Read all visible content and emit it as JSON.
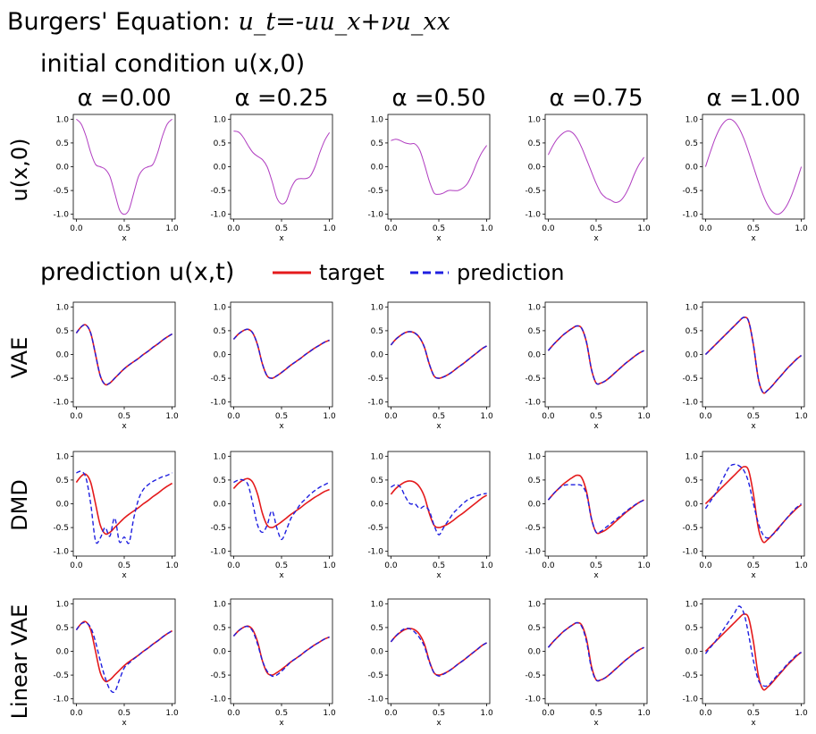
{
  "figure": {
    "title_prefix": "Burgers' Equation: ",
    "title_equation": "u_t=-uu_x+νu_xx",
    "section_initial": "initial condition u(x,0)",
    "section_prediction": "prediction u(x,t)",
    "legend": [
      {
        "label": "target",
        "color": "#e41a1c",
        "style": "solid"
      },
      {
        "label": "prediction",
        "color": "#1f1fe0",
        "style": "dashed"
      }
    ],
    "row_labels": [
      "u(x,0)",
      "VAE",
      "DMD",
      "Linear VAE"
    ],
    "column_titles": [
      "α =0.00",
      "α =0.25",
      "α =0.50",
      "α =0.75",
      "α =1.00"
    ],
    "colors": {
      "initial": "#b03cc0",
      "target": "#e41a1c",
      "prediction": "#1f1fe0"
    }
  },
  "chart_data": {
    "type": "line",
    "xlabel": "x",
    "xlim": [
      0,
      1
    ],
    "ylim": [
      -1.1,
      1.1
    ],
    "xticks": [
      "0.0",
      "0.5",
      "1.0"
    ],
    "yticks": [
      "1.0",
      "0.5",
      "0.0",
      "-0.5",
      "-1.0"
    ],
    "x": [
      0,
      0.05,
      0.1,
      0.15,
      0.2,
      0.25,
      0.3,
      0.35,
      0.4,
      0.45,
      0.5,
      0.55,
      0.6,
      0.65,
      0.7,
      0.75,
      0.8,
      0.85,
      0.9,
      0.95,
      1.0
    ],
    "initial_condition": [
      [
        1.0,
        0.9,
        0.65,
        0.3,
        0.05,
        0.0,
        -0.05,
        -0.2,
        -0.55,
        -0.9,
        -1.0,
        -0.9,
        -0.55,
        -0.2,
        -0.05,
        0.0,
        0.05,
        0.3,
        0.65,
        0.9,
        1.0
      ],
      [
        0.75,
        0.73,
        0.62,
        0.45,
        0.3,
        0.22,
        0.15,
        0.0,
        -0.3,
        -0.65,
        -0.78,
        -0.72,
        -0.45,
        -0.28,
        -0.25,
        -0.25,
        -0.2,
        0.0,
        0.3,
        0.55,
        0.72
      ],
      [
        0.55,
        0.58,
        0.55,
        0.5,
        0.48,
        0.48,
        0.35,
        0.05,
        -0.3,
        -0.55,
        -0.58,
        -0.55,
        -0.5,
        -0.5,
        -0.5,
        -0.45,
        -0.35,
        -0.15,
        0.1,
        0.3,
        0.45
      ],
      [
        0.25,
        0.45,
        0.6,
        0.7,
        0.75,
        0.72,
        0.6,
        0.4,
        0.15,
        -0.1,
        -0.35,
        -0.55,
        -0.65,
        -0.7,
        -0.75,
        -0.72,
        -0.6,
        -0.4,
        -0.15,
        0.05,
        0.2
      ],
      [
        0.0,
        0.31,
        0.59,
        0.81,
        0.95,
        1.0,
        0.95,
        0.81,
        0.59,
        0.31,
        0.0,
        -0.31,
        -0.59,
        -0.81,
        -0.95,
        -1.0,
        -0.95,
        -0.81,
        -0.59,
        -0.31,
        0.0
      ]
    ],
    "rows": [
      {
        "name": "VAE",
        "target": [
          [
            0.45,
            0.58,
            0.62,
            0.45,
            0.0,
            -0.45,
            -0.63,
            -0.6,
            -0.5,
            -0.4,
            -0.3,
            -0.22,
            -0.15,
            -0.08,
            0.0,
            0.07,
            0.15,
            0.22,
            0.3,
            0.37,
            0.43
          ],
          [
            0.32,
            0.43,
            0.5,
            0.53,
            0.45,
            0.2,
            -0.2,
            -0.45,
            -0.5,
            -0.45,
            -0.38,
            -0.3,
            -0.22,
            -0.15,
            -0.08,
            0.0,
            0.07,
            0.14,
            0.2,
            0.26,
            0.3
          ],
          [
            0.2,
            0.32,
            0.4,
            0.46,
            0.48,
            0.45,
            0.35,
            0.15,
            -0.2,
            -0.45,
            -0.5,
            -0.47,
            -0.42,
            -0.35,
            -0.27,
            -0.2,
            -0.12,
            -0.04,
            0.04,
            0.12,
            0.18
          ],
          [
            0.08,
            0.2,
            0.3,
            0.4,
            0.48,
            0.55,
            0.6,
            0.55,
            0.25,
            -0.3,
            -0.6,
            -0.6,
            -0.55,
            -0.47,
            -0.38,
            -0.29,
            -0.2,
            -0.12,
            -0.04,
            0.03,
            0.08
          ],
          [
            0.0,
            0.1,
            0.2,
            0.3,
            0.4,
            0.5,
            0.6,
            0.7,
            0.78,
            0.7,
            0.2,
            -0.5,
            -0.8,
            -0.75,
            -0.65,
            -0.53,
            -0.42,
            -0.3,
            -0.2,
            -0.1,
            -0.02
          ]
        ],
        "prediction": [
          [
            0.45,
            0.58,
            0.62,
            0.45,
            0.0,
            -0.45,
            -0.63,
            -0.6,
            -0.5,
            -0.4,
            -0.3,
            -0.22,
            -0.15,
            -0.08,
            0.0,
            0.07,
            0.15,
            0.22,
            0.3,
            0.37,
            0.43
          ],
          [
            0.32,
            0.43,
            0.5,
            0.53,
            0.45,
            0.2,
            -0.2,
            -0.45,
            -0.5,
            -0.45,
            -0.38,
            -0.3,
            -0.22,
            -0.15,
            -0.08,
            0.0,
            0.07,
            0.14,
            0.2,
            0.26,
            0.3
          ],
          [
            0.2,
            0.32,
            0.4,
            0.46,
            0.48,
            0.45,
            0.35,
            0.15,
            -0.2,
            -0.45,
            -0.5,
            -0.47,
            -0.42,
            -0.35,
            -0.27,
            -0.2,
            -0.12,
            -0.04,
            0.04,
            0.12,
            0.18
          ],
          [
            0.08,
            0.2,
            0.3,
            0.4,
            0.48,
            0.55,
            0.6,
            0.55,
            0.25,
            -0.3,
            -0.6,
            -0.6,
            -0.55,
            -0.47,
            -0.38,
            -0.29,
            -0.2,
            -0.12,
            -0.04,
            0.03,
            0.08
          ],
          [
            0.0,
            0.1,
            0.2,
            0.3,
            0.4,
            0.5,
            0.6,
            0.7,
            0.78,
            0.7,
            0.2,
            -0.5,
            -0.8,
            -0.75,
            -0.65,
            -0.53,
            -0.42,
            -0.3,
            -0.2,
            -0.1,
            -0.02
          ]
        ]
      },
      {
        "name": "DMD",
        "target": [
          [
            0.45,
            0.58,
            0.62,
            0.45,
            0.0,
            -0.45,
            -0.63,
            -0.6,
            -0.5,
            -0.4,
            -0.3,
            -0.22,
            -0.15,
            -0.08,
            0.0,
            0.07,
            0.15,
            0.22,
            0.3,
            0.37,
            0.43
          ],
          [
            0.32,
            0.43,
            0.5,
            0.53,
            0.45,
            0.2,
            -0.2,
            -0.45,
            -0.5,
            -0.45,
            -0.38,
            -0.3,
            -0.22,
            -0.15,
            -0.08,
            0.0,
            0.07,
            0.14,
            0.2,
            0.26,
            0.3
          ],
          [
            0.2,
            0.32,
            0.4,
            0.46,
            0.48,
            0.45,
            0.35,
            0.15,
            -0.2,
            -0.45,
            -0.5,
            -0.47,
            -0.42,
            -0.35,
            -0.27,
            -0.2,
            -0.12,
            -0.04,
            0.04,
            0.12,
            0.18
          ],
          [
            0.08,
            0.2,
            0.3,
            0.4,
            0.48,
            0.55,
            0.6,
            0.55,
            0.25,
            -0.3,
            -0.6,
            -0.6,
            -0.55,
            -0.47,
            -0.38,
            -0.29,
            -0.2,
            -0.12,
            -0.04,
            0.03,
            0.08
          ],
          [
            0.0,
            0.1,
            0.2,
            0.3,
            0.4,
            0.5,
            0.6,
            0.7,
            0.78,
            0.7,
            0.2,
            -0.5,
            -0.8,
            -0.75,
            -0.65,
            -0.53,
            -0.42,
            -0.3,
            -0.2,
            -0.1,
            -0.02
          ]
        ],
        "prediction": [
          [
            0.65,
            0.68,
            0.55,
            0.0,
            -0.78,
            -0.72,
            -0.5,
            -0.68,
            -0.3,
            -0.8,
            -0.7,
            -0.82,
            -0.3,
            0.1,
            0.3,
            0.4,
            0.47,
            0.52,
            0.57,
            0.6,
            0.65
          ],
          [
            0.45,
            0.5,
            0.5,
            0.4,
            0.0,
            -0.45,
            -0.6,
            -0.45,
            -0.15,
            -0.5,
            -0.75,
            -0.55,
            -0.3,
            -0.15,
            0.0,
            0.1,
            0.2,
            0.28,
            0.35,
            0.4,
            0.45
          ],
          [
            0.35,
            0.4,
            0.35,
            0.15,
            0.0,
            0.0,
            -0.1,
            -0.05,
            -0.15,
            -0.45,
            -0.65,
            -0.5,
            -0.35,
            -0.2,
            -0.1,
            0.0,
            0.08,
            0.13,
            0.17,
            0.2,
            0.22
          ],
          [
            0.08,
            0.2,
            0.3,
            0.38,
            0.4,
            0.4,
            0.4,
            0.38,
            0.2,
            -0.3,
            -0.6,
            -0.58,
            -0.5,
            -0.42,
            -0.34,
            -0.26,
            -0.18,
            -0.1,
            -0.03,
            0.03,
            0.08
          ],
          [
            -0.1,
            0.05,
            0.2,
            0.4,
            0.6,
            0.78,
            0.83,
            0.8,
            0.7,
            0.45,
            0.0,
            -0.4,
            -0.65,
            -0.72,
            -0.65,
            -0.55,
            -0.42,
            -0.3,
            -0.18,
            -0.08,
            0.0
          ]
        ]
      },
      {
        "name": "Linear VAE",
        "target": [
          [
            0.45,
            0.58,
            0.62,
            0.45,
            0.0,
            -0.45,
            -0.63,
            -0.6,
            -0.5,
            -0.4,
            -0.3,
            -0.22,
            -0.15,
            -0.08,
            0.0,
            0.07,
            0.15,
            0.22,
            0.3,
            0.37,
            0.43
          ],
          [
            0.32,
            0.43,
            0.5,
            0.53,
            0.45,
            0.2,
            -0.2,
            -0.45,
            -0.5,
            -0.45,
            -0.38,
            -0.3,
            -0.22,
            -0.15,
            -0.08,
            0.0,
            0.07,
            0.14,
            0.2,
            0.26,
            0.3
          ],
          [
            0.2,
            0.32,
            0.4,
            0.46,
            0.48,
            0.45,
            0.35,
            0.15,
            -0.2,
            -0.45,
            -0.5,
            -0.47,
            -0.42,
            -0.35,
            -0.27,
            -0.2,
            -0.12,
            -0.04,
            0.04,
            0.12,
            0.18
          ],
          [
            0.08,
            0.2,
            0.3,
            0.4,
            0.48,
            0.55,
            0.6,
            0.55,
            0.25,
            -0.3,
            -0.6,
            -0.6,
            -0.55,
            -0.47,
            -0.38,
            -0.29,
            -0.2,
            -0.12,
            -0.04,
            0.03,
            0.08
          ],
          [
            0.0,
            0.1,
            0.2,
            0.3,
            0.4,
            0.5,
            0.6,
            0.7,
            0.78,
            0.7,
            0.2,
            -0.5,
            -0.8,
            -0.75,
            -0.65,
            -0.53,
            -0.42,
            -0.3,
            -0.2,
            -0.1,
            -0.02
          ]
        ],
        "prediction": [
          [
            0.45,
            0.58,
            0.6,
            0.5,
            0.2,
            -0.2,
            -0.55,
            -0.8,
            -0.85,
            -0.6,
            -0.35,
            -0.25,
            -0.16,
            -0.08,
            0.0,
            0.07,
            0.15,
            0.22,
            0.3,
            0.37,
            0.43
          ],
          [
            0.32,
            0.43,
            0.5,
            0.52,
            0.42,
            0.15,
            -0.2,
            -0.42,
            -0.52,
            -0.5,
            -0.42,
            -0.32,
            -0.22,
            -0.15,
            -0.08,
            0.0,
            0.07,
            0.14,
            0.2,
            0.26,
            0.3
          ],
          [
            0.2,
            0.32,
            0.42,
            0.48,
            0.47,
            0.4,
            0.28,
            0.1,
            -0.22,
            -0.45,
            -0.52,
            -0.48,
            -0.42,
            -0.35,
            -0.27,
            -0.2,
            -0.12,
            -0.04,
            0.04,
            0.12,
            0.18
          ],
          [
            0.08,
            0.2,
            0.3,
            0.4,
            0.48,
            0.55,
            0.6,
            0.52,
            0.2,
            -0.35,
            -0.6,
            -0.6,
            -0.55,
            -0.47,
            -0.38,
            -0.29,
            -0.2,
            -0.12,
            -0.04,
            0.03,
            0.08
          ],
          [
            -0.05,
            0.08,
            0.2,
            0.35,
            0.5,
            0.65,
            0.8,
            0.95,
            0.8,
            0.35,
            -0.2,
            -0.6,
            -0.72,
            -0.72,
            -0.62,
            -0.5,
            -0.4,
            -0.28,
            -0.18,
            -0.08,
            -0.02
          ]
        ]
      }
    ]
  }
}
